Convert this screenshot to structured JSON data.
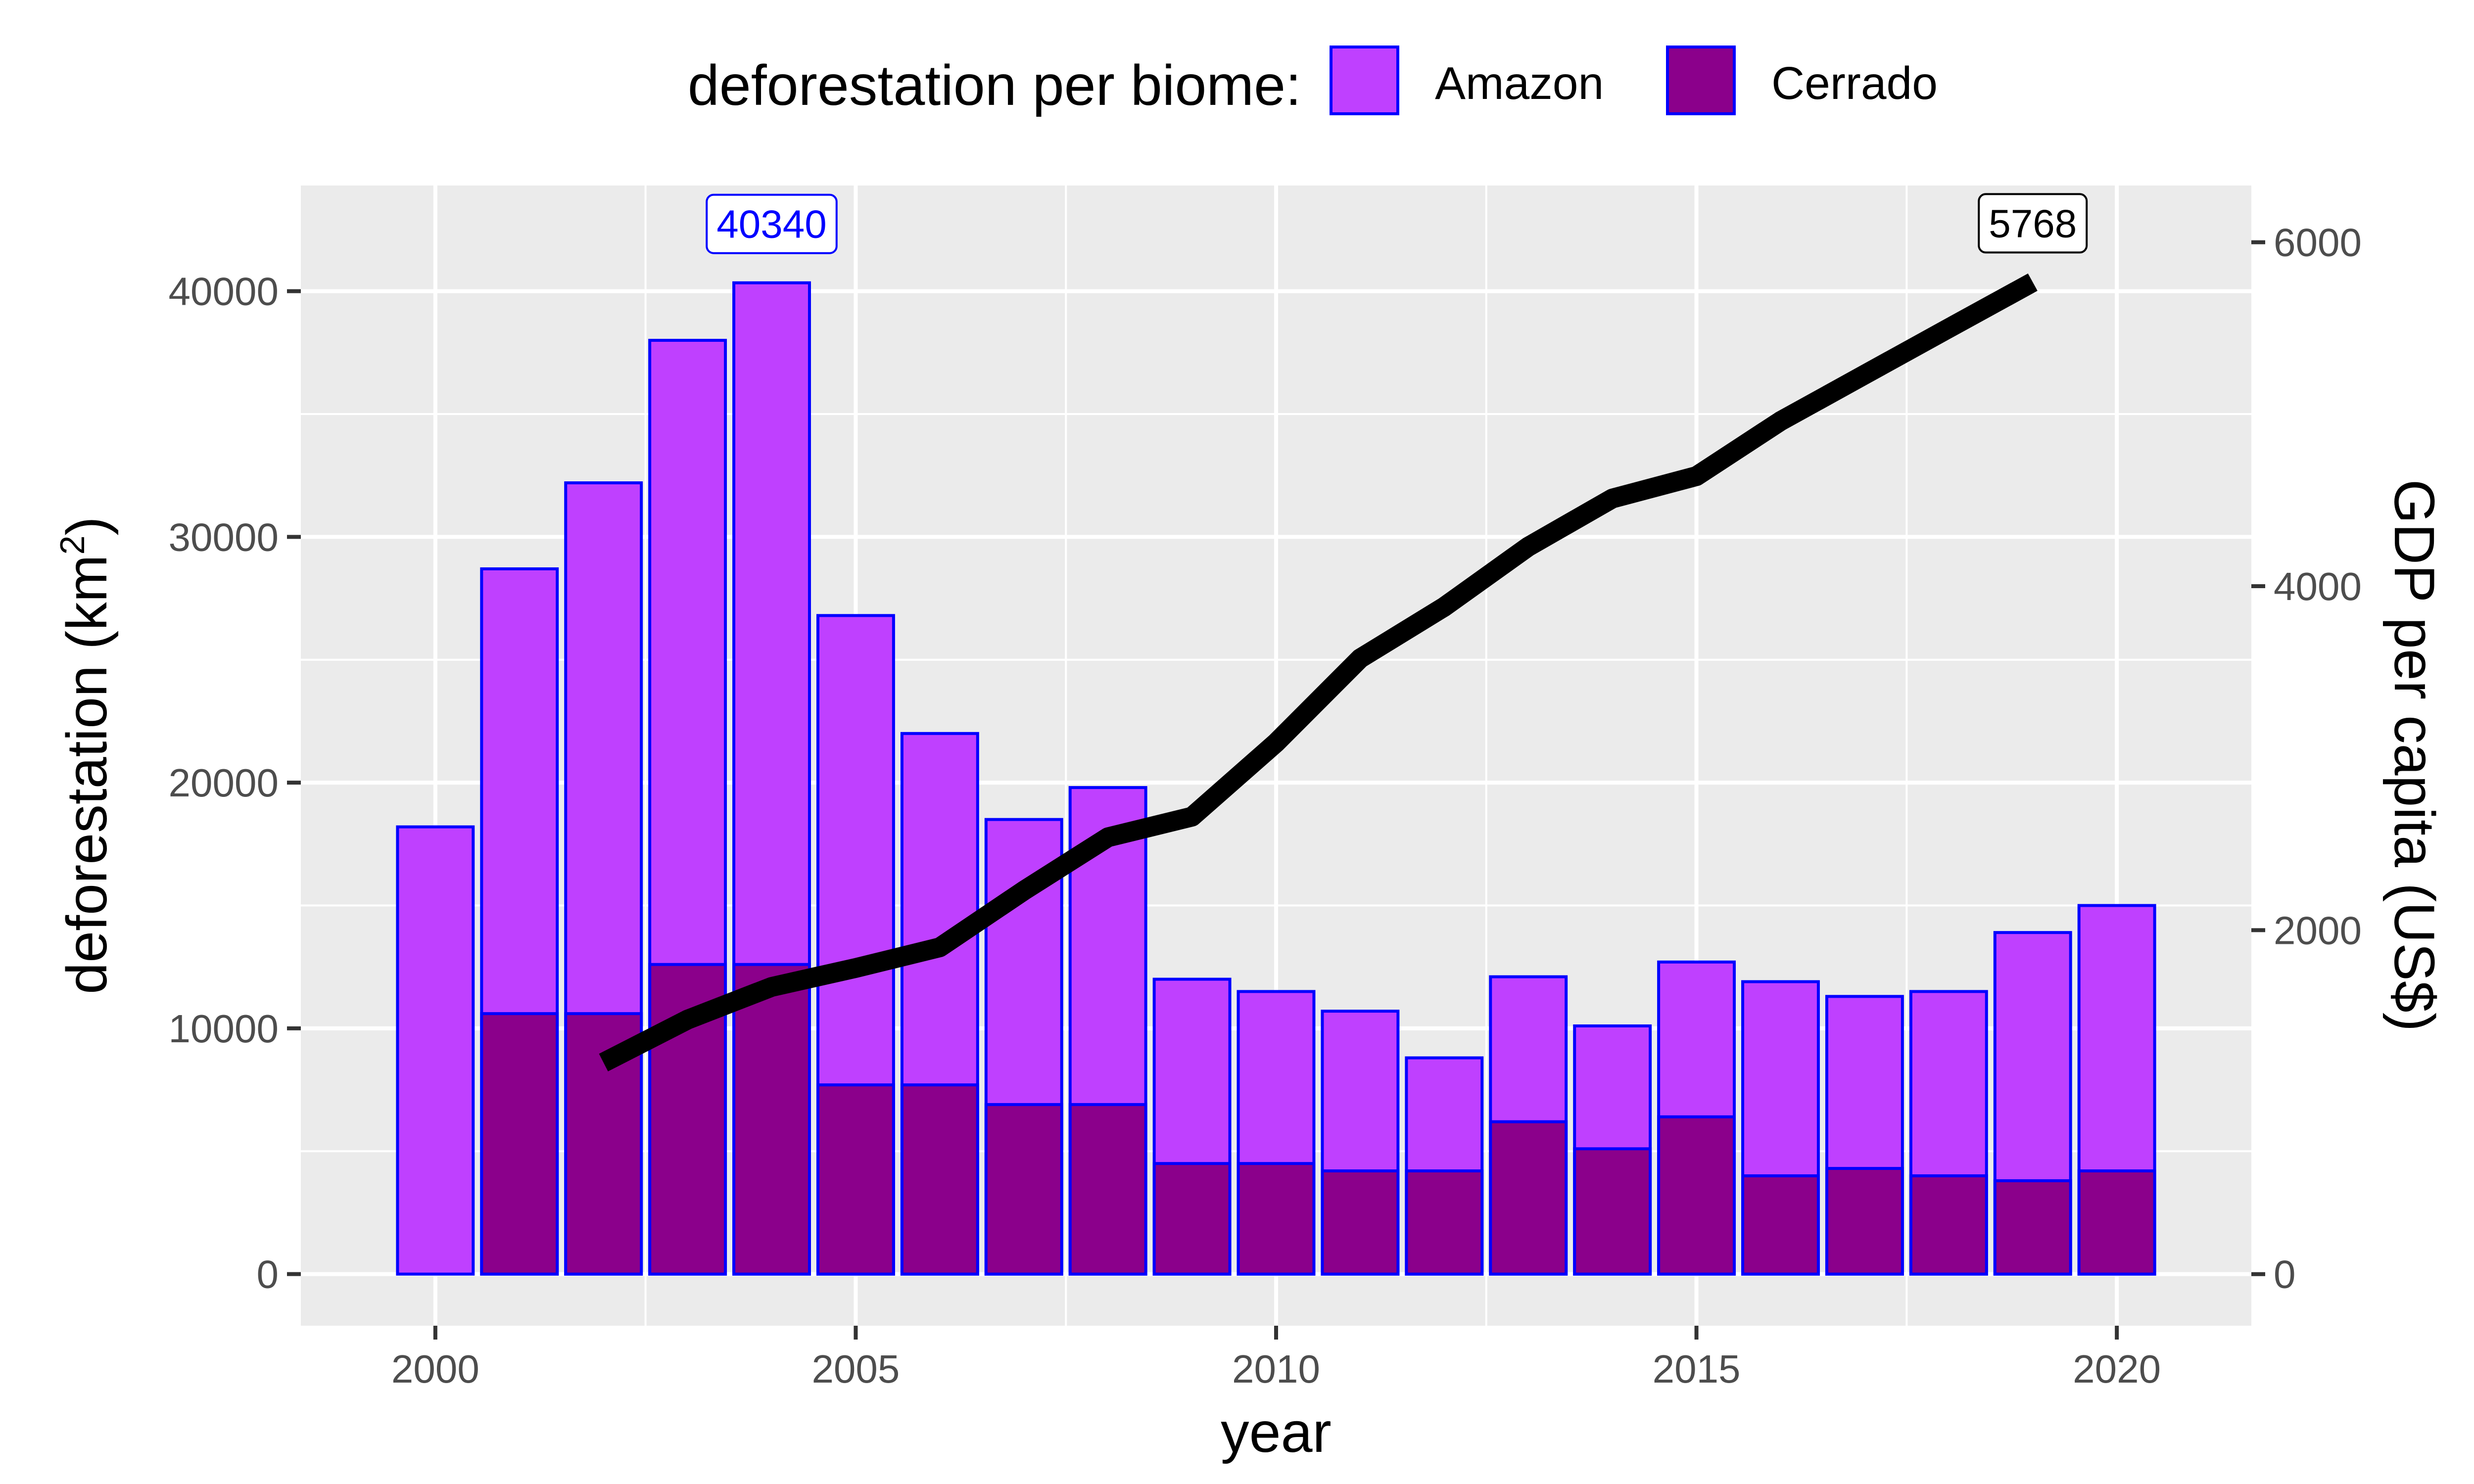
{
  "chart_data": {
    "type": "bar",
    "x": [
      2000,
      2001,
      2002,
      2003,
      2004,
      2005,
      2006,
      2007,
      2008,
      2009,
      2010,
      2011,
      2012,
      2013,
      2014,
      2015,
      2016,
      2017,
      2018,
      2019,
      2020
    ],
    "series": [
      {
        "name": "Amazon",
        "type": "bar",
        "axis": "left",
        "color": "#BF40FF",
        "values": [
          18200,
          28700,
          32200,
          38000,
          40340,
          26800,
          22000,
          18500,
          19800,
          12000,
          11500,
          10700,
          8800,
          12100,
          10100,
          12700,
          11900,
          11300,
          11500,
          13900,
          15000
        ]
      },
      {
        "name": "Cerrado",
        "type": "bar",
        "axis": "left",
        "color": "#8B008B",
        "values": [
          null,
          10600,
          10600,
          12600,
          12600,
          7700,
          7700,
          6900,
          6900,
          4500,
          4500,
          4200,
          4200,
          6200,
          5100,
          6400,
          4000,
          4300,
          4000,
          3800,
          4200
        ]
      },
      {
        "name": "GDP per capita",
        "type": "line",
        "axis": "right",
        "color": "#000000",
        "x": [
          2002,
          2003,
          2004,
          2005,
          2006,
          2007,
          2008,
          2009,
          2010,
          2011,
          2012,
          2013,
          2014,
          2015,
          2016,
          2017,
          2018,
          2019
        ],
        "values": [
          1230,
          1480,
          1670,
          1780,
          1900,
          2230,
          2540,
          2660,
          3090,
          3580,
          3880,
          4230,
          4510,
          4640,
          4960,
          5230,
          5500,
          5768
        ]
      }
    ],
    "xlabel": "year",
    "ylabel": "deforestation (km",
    "ylabel_superscript": "2",
    "ylabel_close": ")",
    "y2label": "GDP per capita (US$)",
    "legend_title": "deforestation per biome:",
    "legend_position": "top",
    "xlim": [
      1998.4,
      2021.6
    ],
    "ylim": [
      -2100,
      44300
    ],
    "y2lim": [
      -300,
      6330
    ],
    "x_ticks": [
      2000,
      2005,
      2010,
      2015,
      2020
    ],
    "y_ticks": [
      0,
      10000,
      20000,
      30000,
      40000
    ],
    "y2_ticks": [
      0,
      2000,
      4000,
      6000
    ],
    "grid": true,
    "panel_color": "#EBEBEB",
    "bar_border_color": "#0000FF",
    "annotations": [
      {
        "x": 2004,
        "series": "Amazon",
        "text": "40340",
        "color": "#0000FF"
      },
      {
        "x": 2019,
        "series": "GDP per capita",
        "text": "5768",
        "color": "#000000"
      }
    ]
  }
}
